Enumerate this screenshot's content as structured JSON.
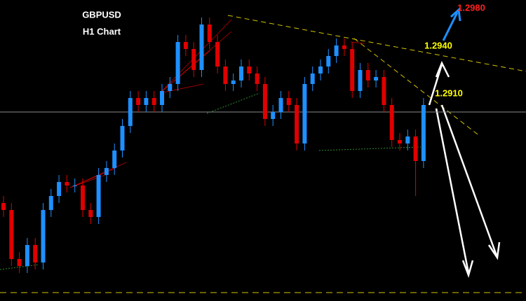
{
  "chart_data": {
    "type": "candlestick",
    "title": "GBPUSD",
    "subtitle": "H1 Chart",
    "up_color": "#1e90ff",
    "down_color": "#e00000",
    "ylim": [
      1.2802,
      1.2974
    ],
    "open": [
      1.2858,
      1.2854,
      1.2826,
      1.2822,
      1.2834,
      1.2824,
      1.2854,
      1.2862,
      1.287,
      1.2868,
      1.2868,
      1.2854,
      1.285,
      1.2874,
      1.2878,
      1.2888,
      1.2902,
      1.2918,
      1.2914,
      1.2918,
      1.2914,
      1.2922,
      1.2926,
      1.295,
      1.2946,
      1.2934,
      1.296,
      1.295,
      1.2936,
      1.2926,
      1.2928,
      1.2936,
      1.2932,
      1.2926,
      1.2906,
      1.291,
      1.2918,
      1.2914,
      1.2892,
      1.2926,
      1.2932,
      1.2936,
      1.2942,
      1.2948,
      1.2946,
      1.2922,
      1.2934,
      1.2928,
      1.293,
      1.2914,
      1.2894,
      1.2892,
      1.2896,
      1.2882
    ],
    "high": [
      1.2862,
      1.2858,
      1.283,
      1.2838,
      1.2838,
      1.2858,
      1.2866,
      1.2874,
      1.2874,
      1.2872,
      1.2872,
      1.2858,
      1.2878,
      1.2882,
      1.2892,
      1.2906,
      1.2922,
      1.2922,
      1.2922,
      1.2922,
      1.2926,
      1.293,
      1.2954,
      1.2954,
      1.295,
      1.2964,
      1.2964,
      1.2954,
      1.294,
      1.2932,
      1.294,
      1.294,
      1.2936,
      1.293,
      1.2914,
      1.2922,
      1.2922,
      1.2918,
      1.293,
      1.2936,
      1.294,
      1.2946,
      1.2952,
      1.2952,
      1.295,
      1.2938,
      1.2938,
      1.2934,
      1.2934,
      1.2918,
      1.2898,
      1.29,
      1.29,
      1.2918
    ],
    "low": [
      1.285,
      1.2822,
      1.2818,
      1.2818,
      1.282,
      1.282,
      1.285,
      1.2858,
      1.2864,
      1.2864,
      1.285,
      1.2846,
      1.2846,
      1.287,
      1.2874,
      1.2884,
      1.2898,
      1.291,
      1.291,
      1.291,
      1.291,
      1.2918,
      1.2922,
      1.2942,
      1.293,
      1.293,
      1.2946,
      1.2932,
      1.2922,
      1.2922,
      1.2924,
      1.2928,
      1.2922,
      1.2902,
      1.2902,
      1.2906,
      1.291,
      1.2888,
      1.2888,
      1.2922,
      1.2928,
      1.2932,
      1.2938,
      1.2942,
      1.2918,
      1.2918,
      1.2924,
      1.2924,
      1.291,
      1.289,
      1.2888,
      1.2888,
      1.2862,
      1.2878
    ],
    "close": [
      1.2854,
      1.2826,
      1.2822,
      1.2834,
      1.2824,
      1.2854,
      1.2862,
      1.287,
      1.2868,
      1.2868,
      1.2854,
      1.285,
      1.2874,
      1.2878,
      1.2888,
      1.2902,
      1.2918,
      1.2914,
      1.2918,
      1.2914,
      1.2922,
      1.2926,
      1.295,
      1.2946,
      1.2934,
      1.296,
      1.295,
      1.2936,
      1.2926,
      1.2928,
      1.2936,
      1.2932,
      1.2926,
      1.2906,
      1.291,
      1.2918,
      1.2914,
      1.2892,
      1.2926,
      1.2932,
      1.2936,
      1.2942,
      1.2948,
      1.2946,
      1.2922,
      1.2934,
      1.2928,
      1.293,
      1.2914,
      1.2894,
      1.2892,
      1.2896,
      1.2882,
      1.2914
    ],
    "targets": [
      {
        "value": 1.298,
        "label": "1.2980",
        "color": "#ff2020"
      },
      {
        "value": 1.294,
        "label": "1.2940",
        "color": "#ffff00"
      },
      {
        "value": 1.291,
        "label": "1.2910",
        "color": "#ffff00"
      }
    ]
  }
}
